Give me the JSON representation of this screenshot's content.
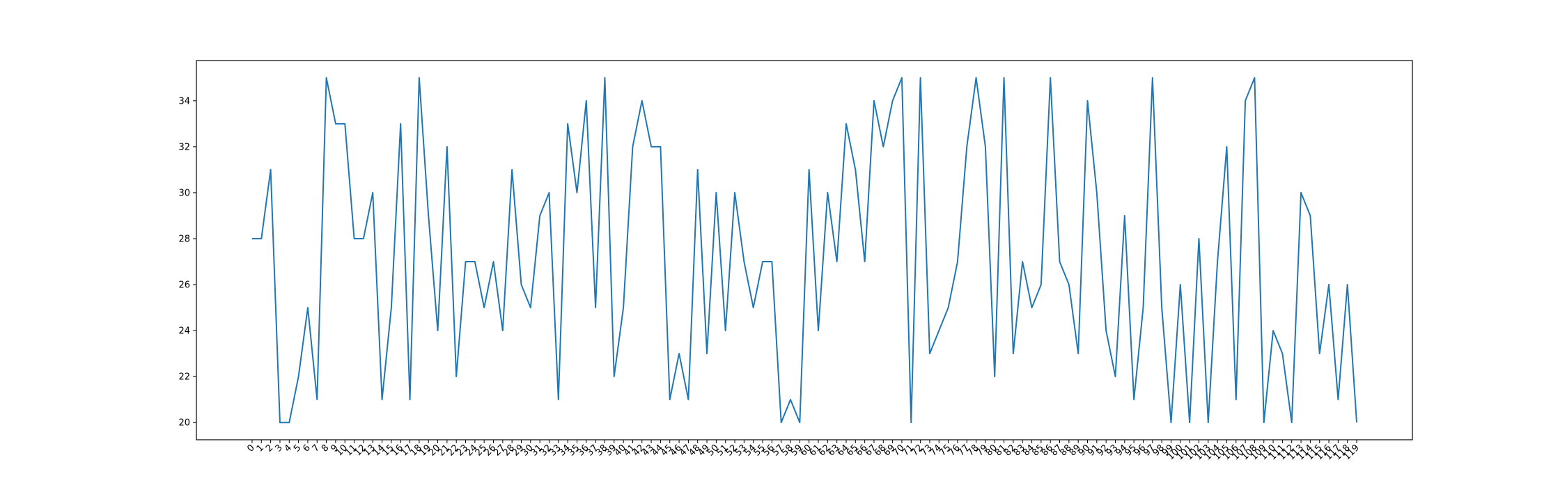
{
  "chart_data": {
    "type": "line",
    "title": "",
    "xlabel": "",
    "ylabel": "",
    "x": [
      0,
      1,
      2,
      3,
      4,
      5,
      6,
      7,
      8,
      9,
      10,
      11,
      12,
      13,
      14,
      15,
      16,
      17,
      18,
      19,
      20,
      21,
      22,
      23,
      24,
      25,
      26,
      27,
      28,
      29,
      30,
      31,
      32,
      33,
      34,
      35,
      36,
      37,
      38,
      39,
      40,
      41,
      42,
      43,
      44,
      45,
      46,
      47,
      48,
      49,
      50,
      51,
      52,
      53,
      54,
      55,
      56,
      57,
      58,
      59,
      60,
      61,
      62,
      63,
      64,
      65,
      66,
      67,
      68,
      69,
      70,
      71,
      72,
      73,
      74,
      75,
      76,
      77,
      78,
      79,
      80,
      81,
      82,
      83,
      84,
      85,
      86,
      87,
      88,
      89,
      90,
      91,
      92,
      93,
      94,
      95,
      96,
      97,
      98,
      99,
      100,
      101,
      102,
      103,
      104,
      105,
      106,
      107,
      108,
      109,
      110,
      111,
      112,
      113,
      114,
      115,
      116,
      117,
      118,
      119
    ],
    "xticks": [
      "0",
      "1",
      "2",
      "3",
      "4",
      "5",
      "6",
      "7",
      "8",
      "9",
      "10",
      "11",
      "12",
      "13",
      "14",
      "15",
      "16",
      "17",
      "18",
      "19",
      "20",
      "21",
      "22",
      "23",
      "24",
      "25",
      "26",
      "27",
      "28",
      "29",
      "30",
      "31",
      "32",
      "33",
      "34",
      "35",
      "36",
      "37",
      "38",
      "39",
      "40",
      "41",
      "42",
      "43",
      "44",
      "45",
      "46",
      "47",
      "48",
      "49",
      "50",
      "51",
      "52",
      "53",
      "54",
      "55",
      "56",
      "57",
      "58",
      "59",
      "60",
      "61",
      "62",
      "63",
      "64",
      "65",
      "66",
      "67",
      "68",
      "69",
      "70",
      "71",
      "72",
      "73",
      "74",
      "75",
      "76",
      "77",
      "78",
      "79",
      "80",
      "81",
      "82",
      "83",
      "84",
      "85",
      "86",
      "87",
      "88",
      "89",
      "90",
      "91",
      "92",
      "93",
      "94",
      "95",
      "96",
      "97",
      "98",
      "99",
      "100",
      "101",
      "102",
      "103",
      "104",
      "105",
      "106",
      "107",
      "108",
      "109",
      "110",
      "111",
      "112",
      "113",
      "114",
      "115",
      "116",
      "117",
      "118",
      "119"
    ],
    "yticks": [
      "20",
      "22",
      "24",
      "26",
      "28",
      "30",
      "32",
      "34"
    ],
    "ytick_values": [
      20,
      22,
      24,
      26,
      28,
      30,
      32,
      34
    ],
    "xlim": [
      -6.0,
      125.0
    ],
    "ylim": [
      19.25,
      35.75
    ],
    "grid": false,
    "series": [
      {
        "color": "#1f77b4",
        "values": [
          28,
          28,
          31,
          20,
          20,
          22,
          25,
          21,
          35,
          33,
          33,
          28,
          28,
          30,
          21,
          25,
          33,
          21,
          35,
          29,
          24,
          32,
          22,
          27,
          27,
          25,
          27,
          24,
          31,
          26,
          25,
          29,
          30,
          21,
          33,
          30,
          34,
          25,
          35,
          22,
          25,
          32,
          34,
          32,
          32,
          21,
          23,
          21,
          31,
          23,
          30,
          24,
          30,
          27,
          25,
          27,
          27,
          20,
          21,
          20,
          31,
          24,
          30,
          27,
          33,
          31,
          27,
          34,
          32,
          34,
          35,
          20,
          35,
          23,
          24,
          25,
          27,
          32,
          35,
          32,
          22,
          35,
          23,
          27,
          25,
          26,
          35,
          27,
          26,
          23,
          34,
          30,
          24,
          22,
          29,
          21,
          25,
          35,
          25,
          20,
          26,
          20,
          28,
          20,
          27,
          32,
          21,
          34,
          35,
          20,
          24,
          23,
          20,
          30,
          29,
          23,
          26,
          21,
          26,
          20
        ]
      }
    ]
  }
}
